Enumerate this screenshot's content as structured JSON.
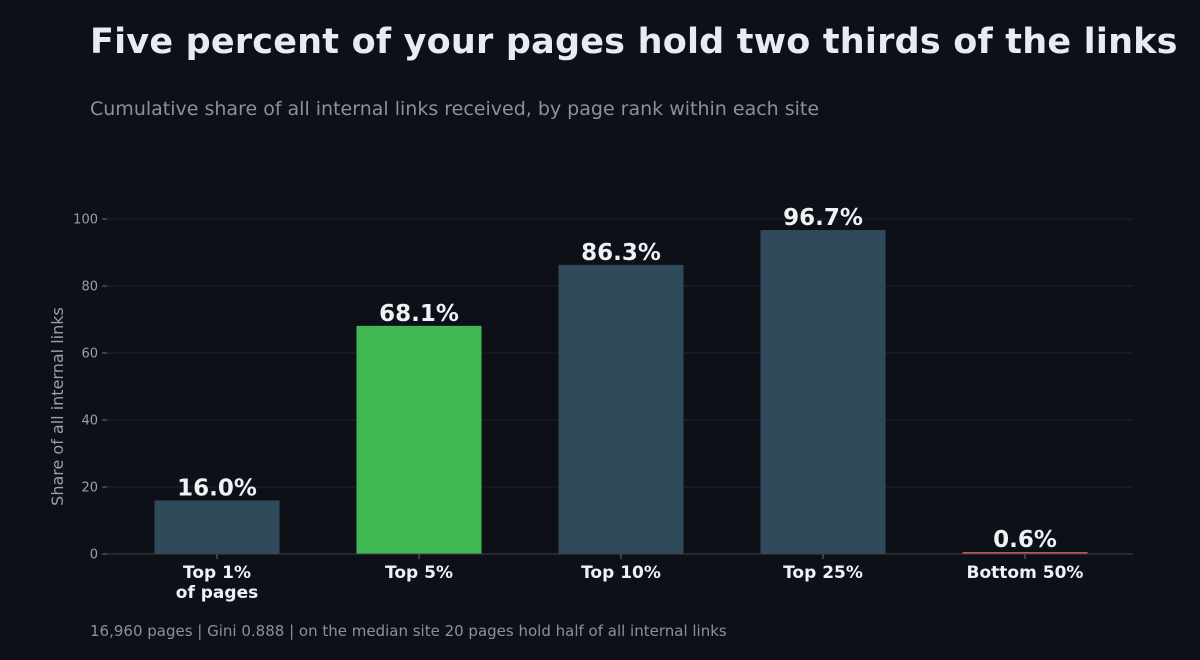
{
  "chart_data": {
    "type": "bar",
    "title": "Five percent of your pages hold two thirds of the links",
    "subtitle": "Cumulative share of all internal links received, by page rank within each site",
    "footer": "16,960 pages | Gini 0.888 | on the median site 20 pages hold half of all internal links",
    "xlabel": "",
    "ylabel": "Share of all internal links",
    "ylim": [
      0,
      100
    ],
    "yticks": [
      "0",
      "20",
      "40",
      "60",
      "80",
      "100"
    ],
    "grid": "y",
    "categories": [
      "Top 1%\nof pages",
      "Top 5%",
      "Top 10%",
      "Top 25%",
      "Bottom 50%"
    ],
    "values": [
      16.0,
      68.1,
      86.3,
      96.7,
      0.6
    ],
    "value_labels": [
      "16.0%",
      "68.1%",
      "86.3%",
      "96.7%",
      "0.6%"
    ],
    "colors": [
      "#2e4a5b",
      "#40b954",
      "#2e4a5b",
      "#2e4a5b",
      "#c0584a"
    ],
    "highlight_index": 1
  }
}
